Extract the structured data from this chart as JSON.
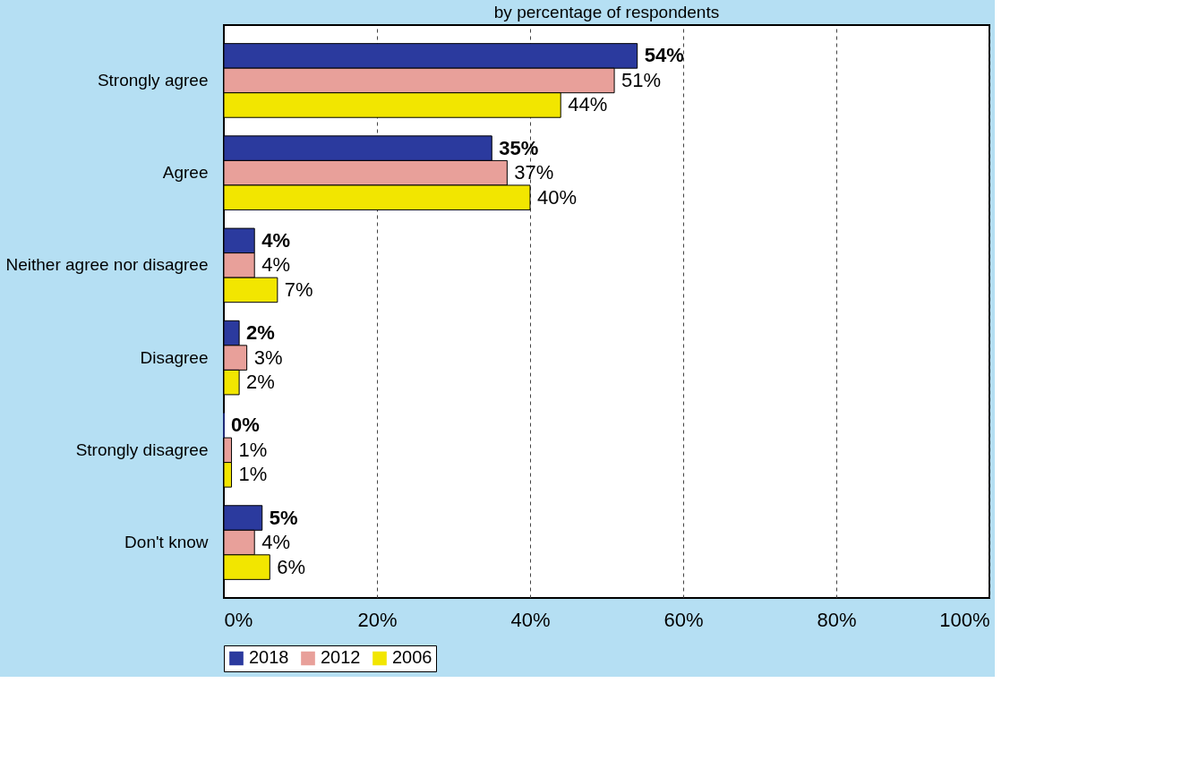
{
  "chart_data": {
    "type": "bar",
    "orientation": "horizontal",
    "title": "by percentage of respondents",
    "categories": [
      "Strongly agree",
      "Agree",
      "Neither agree nor disagree",
      "Disagree",
      "Strongly disagree",
      "Don't know"
    ],
    "series": [
      {
        "name": "2018",
        "color": "#2b3a9e",
        "values": [
          54,
          35,
          4,
          2,
          0,
          5
        ],
        "value_labels": [
          "54%",
          "35%",
          "4%",
          "2%",
          "0%",
          "5%"
        ]
      },
      {
        "name": "2012",
        "color": "#e8a09a",
        "values": [
          51,
          37,
          4,
          3,
          1,
          4
        ],
        "value_labels": [
          "51%",
          "37%",
          "4%",
          "3%",
          "1%",
          "4%"
        ]
      },
      {
        "name": "2006",
        "color": "#f2e600",
        "values": [
          44,
          40,
          7,
          2,
          1,
          6
        ],
        "value_labels": [
          "44%",
          "40%",
          "7%",
          "2%",
          "1%",
          "6%"
        ]
      }
    ],
    "xlim": [
      0,
      100
    ],
    "xticks": [
      {
        "value": 0,
        "label": "0%"
      },
      {
        "value": 20,
        "label": "20%"
      },
      {
        "value": 40,
        "label": "40%"
      },
      {
        "value": 60,
        "label": "60%"
      },
      {
        "value": 80,
        "label": "80%"
      },
      {
        "value": 100,
        "label": "100%"
      }
    ],
    "grid": "x",
    "legend": "bottom left"
  }
}
